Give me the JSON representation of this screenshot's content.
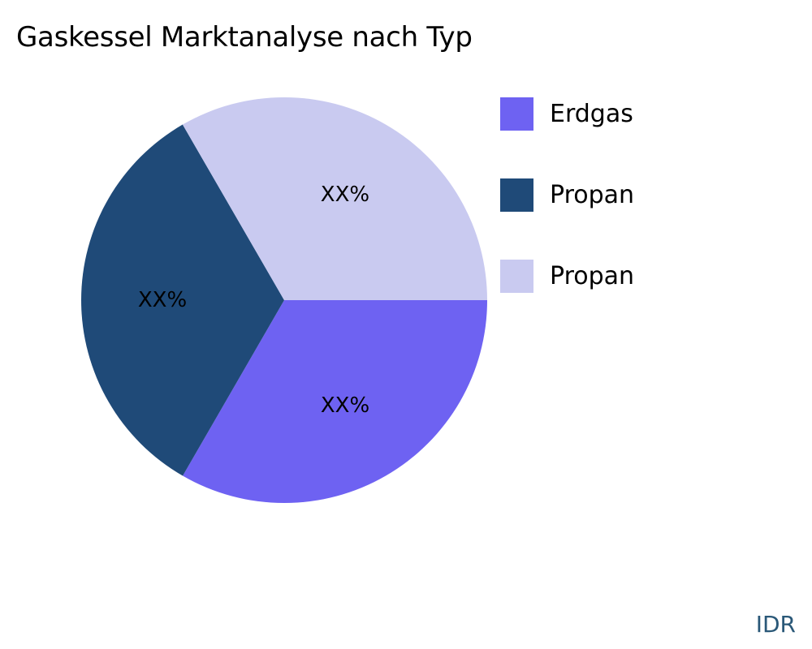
{
  "chart_data": {
    "type": "pie",
    "title": "Gaskessel Marktanalyse nach Typ",
    "categories": [
      "Erdgas",
      "Propan",
      "Propan"
    ],
    "values": [
      33.33,
      33.33,
      33.34
    ],
    "data_labels": [
      "XX%",
      "XX%",
      "XX%"
    ],
    "colors": [
      "#6e62f2",
      "#1f4a78",
      "#c9caf0"
    ],
    "legend_position": "right"
  },
  "watermark": "IDR"
}
